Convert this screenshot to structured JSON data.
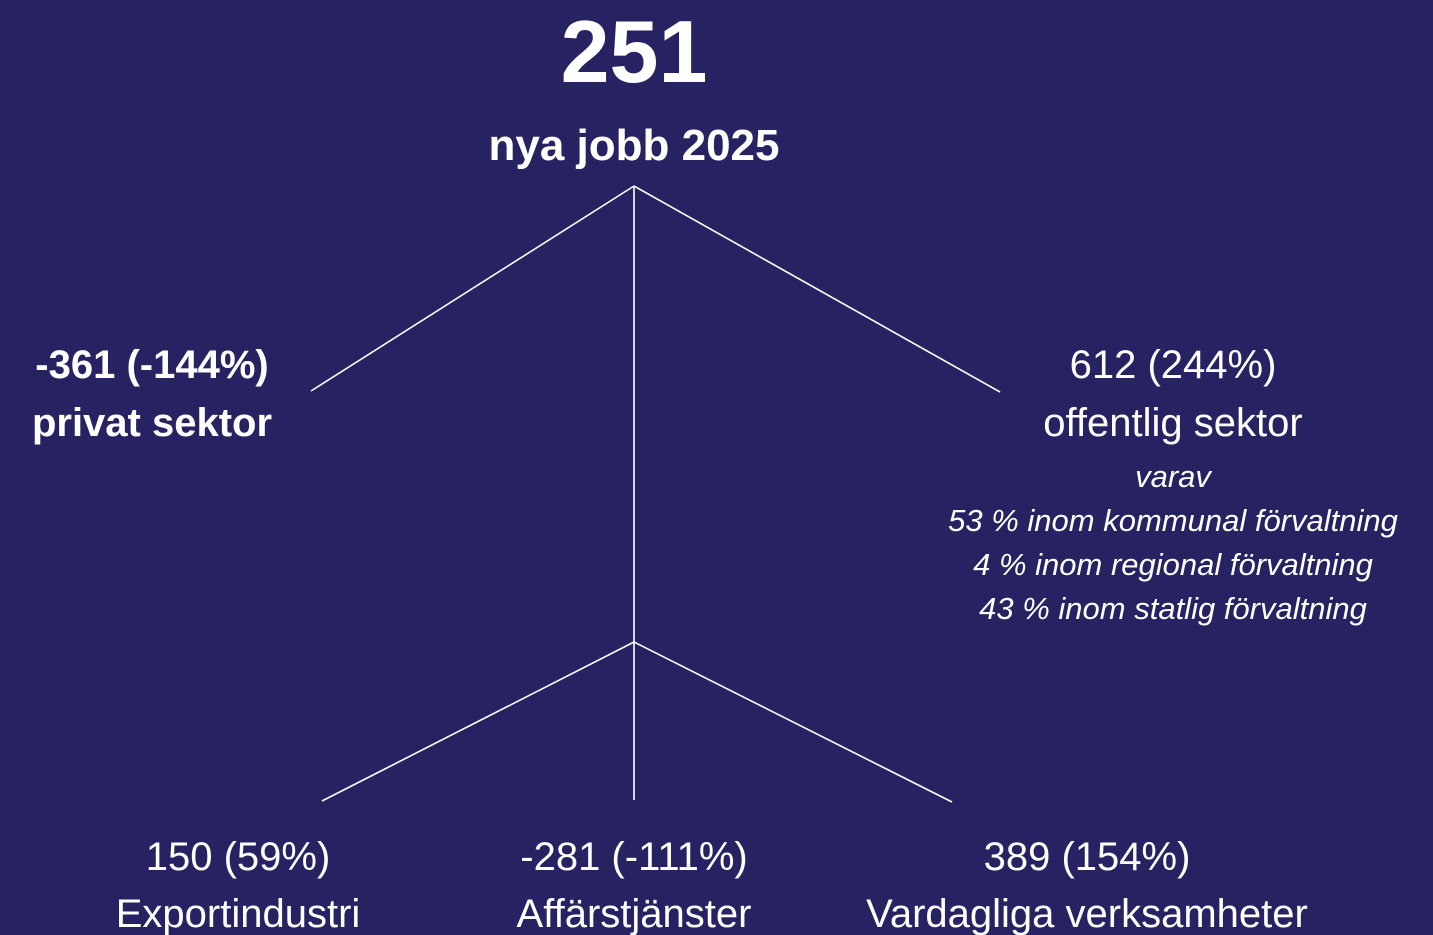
{
  "root": {
    "value": "251",
    "label": "nya jobb 2025"
  },
  "private": {
    "value": "-361 (-144%)",
    "label": "privat sektor"
  },
  "public": {
    "value": "612 (244%)",
    "label": "offentlig sektor",
    "of_which": "varav",
    "parts": [
      "53 % inom kommunal förvaltning",
      "4 % inom regional förvaltning",
      "43 % inom statlig förvaltning"
    ]
  },
  "branches": [
    {
      "value": "150 (59%)",
      "label": "Exportindustri"
    },
    {
      "value": "-281 (-111%)",
      "label": "Affärstjänster"
    },
    {
      "value": "389 (154%)",
      "label": "Vardagliga verksamheter"
    }
  ]
}
